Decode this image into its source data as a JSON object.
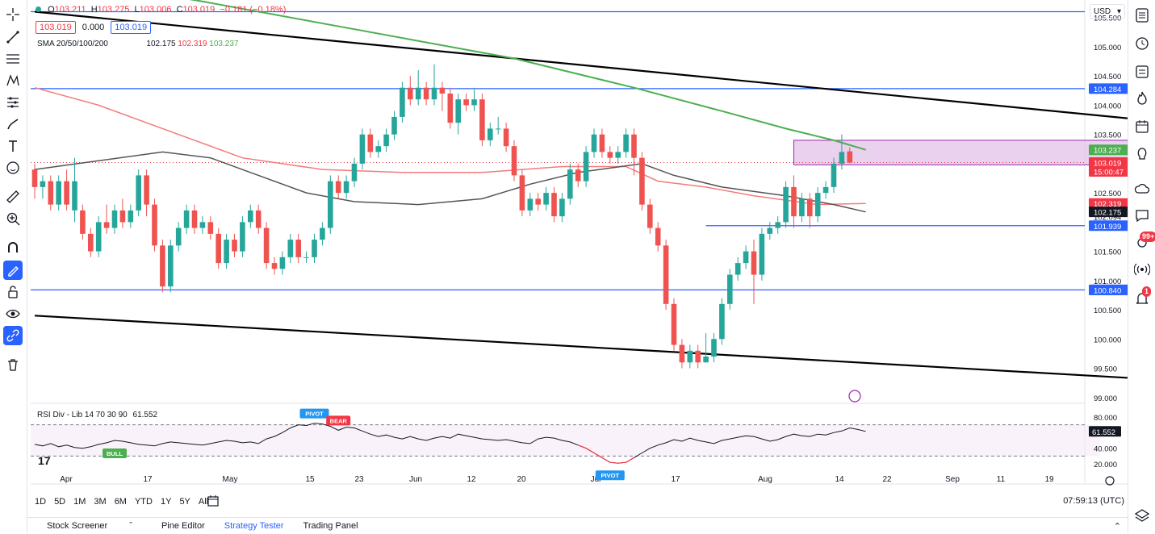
{
  "legend": {
    "ohlc": [
      {
        "label": "O",
        "value": "103.211"
      },
      {
        "label": "H",
        "value": "103.275"
      },
      {
        "label": "L",
        "value": "103.006"
      },
      {
        "label": "C",
        "value": "103.019"
      }
    ],
    "change": "−0.181 (−0.18%)",
    "bid": "103.019",
    "spread": "0.000",
    "ask": "103.019",
    "sma_title": "SMA 20/50/100/200",
    "sma_values": [
      "102.175",
      "102.319",
      "103.237"
    ],
    "rsi_title": "RSI Div - Lib 14 70 30 90",
    "rsi_value": "61.552"
  },
  "currency": "USD",
  "time_range_buttons": [
    "1D",
    "5D",
    "1M",
    "3M",
    "6M",
    "YTD",
    "1Y",
    "5Y",
    "All"
  ],
  "clock": "07:59:13 (UTC)",
  "bottom_panels": [
    "Stock Screener",
    "Pine Editor",
    "Strategy Tester",
    "Trading Panel"
  ],
  "notifications": {
    "ideas_badge": "99+",
    "alerts_badge": "1"
  },
  "colors": {
    "up": "#26a69a",
    "down": "#ef5350",
    "sma200": "#4caf50",
    "sma100": "#f47b7b",
    "sma50": "#555555",
    "hline": "#2962ff",
    "trend": "#000000",
    "zone": "#e1bee7"
  },
  "chart_data": {
    "type": "candlestick",
    "price_axis": {
      "ylim": [
        98.9,
        105.8
      ],
      "ticks": [
        "105.500",
        "105.000",
        "104.500",
        "104.000",
        "103.500",
        "102.500",
        "102.094",
        "101.500",
        "101.000",
        "100.500",
        "100.000",
        "99.500",
        "99.000"
      ]
    },
    "time_axis_labels": [
      "Apr",
      "17",
      "May",
      "15",
      "23",
      "Jun",
      "12",
      "20",
      "Jul",
      "17",
      "Aug",
      "14",
      "22",
      "Sep",
      "11",
      "19"
    ],
    "candles": [
      [
        102.9,
        102.6,
        103.0,
        102.4
      ],
      [
        102.6,
        102.7,
        102.8,
        102.4
      ],
      [
        102.7,
        102.3,
        102.8,
        102.2
      ],
      [
        102.3,
        102.7,
        102.8,
        102.2
      ],
      [
        102.7,
        102.3,
        102.9,
        102.2
      ],
      [
        102.2,
        102.7,
        103.1,
        102.0
      ],
      [
        102.2,
        101.8,
        102.3,
        101.7
      ],
      [
        101.8,
        101.5,
        101.9,
        101.4
      ],
      [
        101.5,
        102.0,
        102.1,
        101.4
      ],
      [
        102.0,
        101.9,
        102.3,
        101.8
      ],
      [
        101.9,
        102.2,
        102.3,
        101.8
      ],
      [
        102.2,
        102.0,
        102.4,
        101.9
      ],
      [
        102.0,
        102.2,
        102.3,
        101.9
      ],
      [
        102.2,
        102.8,
        102.9,
        102.1
      ],
      [
        102.8,
        102.3,
        102.9,
        102.1
      ],
      [
        102.3,
        101.6,
        102.4,
        101.5
      ],
      [
        101.6,
        100.9,
        101.7,
        100.8
      ],
      [
        100.9,
        101.6,
        101.7,
        100.8
      ],
      [
        101.6,
        101.9,
        102.0,
        101.5
      ],
      [
        101.9,
        102.2,
        102.3,
        101.8
      ],
      [
        102.2,
        101.9,
        102.3,
        101.8
      ],
      [
        101.9,
        102.0,
        102.1,
        101.8
      ],
      [
        102.0,
        101.8,
        102.1,
        101.7
      ],
      [
        101.8,
        101.3,
        101.9,
        101.2
      ],
      [
        101.3,
        101.7,
        101.8,
        101.2
      ],
      [
        101.7,
        101.5,
        101.8,
        101.4
      ],
      [
        101.5,
        102.0,
        102.1,
        101.4
      ],
      [
        102.0,
        102.2,
        102.3,
        101.9
      ],
      [
        102.2,
        101.9,
        102.3,
        101.8
      ],
      [
        101.9,
        101.3,
        102.0,
        101.2
      ],
      [
        101.3,
        101.2,
        101.4,
        101.1
      ],
      [
        101.2,
        101.4,
        101.5,
        101.1
      ],
      [
        101.4,
        101.7,
        101.8,
        101.3
      ],
      [
        101.7,
        101.4,
        101.8,
        101.3
      ],
      [
        101.4,
        101.4,
        101.5,
        101.3
      ],
      [
        101.4,
        101.7,
        101.8,
        101.3
      ],
      [
        101.7,
        101.9,
        102.0,
        101.6
      ],
      [
        101.9,
        102.7,
        102.8,
        101.8
      ],
      [
        102.7,
        102.5,
        102.8,
        102.4
      ],
      [
        102.5,
        102.7,
        102.8,
        102.4
      ],
      [
        102.7,
        103.0,
        103.1,
        102.6
      ],
      [
        103.0,
        103.5,
        103.6,
        102.9
      ],
      [
        103.5,
        103.2,
        103.6,
        103.1
      ],
      [
        103.2,
        103.3,
        103.4,
        103.1
      ],
      [
        103.3,
        103.5,
        103.6,
        103.2
      ],
      [
        103.5,
        103.8,
        103.9,
        103.4
      ],
      [
        103.8,
        104.3,
        104.4,
        103.7
      ],
      [
        104.3,
        104.1,
        104.5,
        104.0
      ],
      [
        104.1,
        104.3,
        104.6,
        104.0
      ],
      [
        104.3,
        104.1,
        104.4,
        104.0
      ],
      [
        104.1,
        104.3,
        104.7,
        104.0
      ],
      [
        104.3,
        104.2,
        104.4,
        103.9
      ],
      [
        104.2,
        103.7,
        104.3,
        103.6
      ],
      [
        103.7,
        104.1,
        104.2,
        103.5
      ],
      [
        104.1,
        104.0,
        104.2,
        103.9
      ],
      [
        104.0,
        104.1,
        104.3,
        103.9
      ],
      [
        104.1,
        103.4,
        104.2,
        103.3
      ],
      [
        103.4,
        103.6,
        103.7,
        103.3
      ],
      [
        103.6,
        103.6,
        103.8,
        103.5
      ],
      [
        103.6,
        103.3,
        103.7,
        103.2
      ],
      [
        103.3,
        102.8,
        103.4,
        102.7
      ],
      [
        102.8,
        102.2,
        102.9,
        102.1
      ],
      [
        102.2,
        102.4,
        102.5,
        102.1
      ],
      [
        102.4,
        102.3,
        102.5,
        102.2
      ],
      [
        102.3,
        102.5,
        102.6,
        102.2
      ],
      [
        102.5,
        102.1,
        102.6,
        102.0
      ],
      [
        102.1,
        102.4,
        102.5,
        102.0
      ],
      [
        102.4,
        102.9,
        103.0,
        102.3
      ],
      [
        102.9,
        102.7,
        103.0,
        102.6
      ],
      [
        102.7,
        103.2,
        103.3,
        102.6
      ],
      [
        103.2,
        103.5,
        103.6,
        103.1
      ],
      [
        103.5,
        103.2,
        103.6,
        103.1
      ],
      [
        103.2,
        103.1,
        103.3,
        103.0
      ],
      [
        103.1,
        103.2,
        103.3,
        103.0
      ],
      [
        103.2,
        103.5,
        103.6,
        103.1
      ],
      [
        103.5,
        103.1,
        103.6,
        102.8
      ],
      [
        103.1,
        102.3,
        103.2,
        102.2
      ],
      [
        102.3,
        101.9,
        102.4,
        101.8
      ],
      [
        101.9,
        101.6,
        102.0,
        101.5
      ],
      [
        101.6,
        100.6,
        101.7,
        100.5
      ],
      [
        100.6,
        99.9,
        100.7,
        99.8
      ],
      [
        99.9,
        99.6,
        100.0,
        99.5
      ],
      [
        99.6,
        99.8,
        99.9,
        99.5
      ],
      [
        99.8,
        99.6,
        99.9,
        99.5
      ],
      [
        99.6,
        99.7,
        100.1,
        99.6
      ],
      [
        99.7,
        100.0,
        100.1,
        99.6
      ],
      [
        100.0,
        100.6,
        100.7,
        99.9
      ],
      [
        100.6,
        101.1,
        101.2,
        100.5
      ],
      [
        101.1,
        101.3,
        101.4,
        101.0
      ],
      [
        101.3,
        101.5,
        101.6,
        101.2
      ],
      [
        101.5,
        101.1,
        101.7,
        100.6
      ],
      [
        101.1,
        101.8,
        101.9,
        101.0
      ],
      [
        101.8,
        101.9,
        102.0,
        101.7
      ],
      [
        101.9,
        102.0,
        102.1,
        101.8
      ],
      [
        102.0,
        102.6,
        102.7,
        101.9
      ],
      [
        102.6,
        102.1,
        102.8,
        101.9
      ],
      [
        102.1,
        102.4,
        102.5,
        102.0
      ],
      [
        102.4,
        102.1,
        102.5,
        101.9
      ],
      [
        102.1,
        102.5,
        102.6,
        102.0
      ],
      [
        102.5,
        102.6,
        102.7,
        102.4
      ],
      [
        102.6,
        103.0,
        103.1,
        102.5
      ],
      [
        103.0,
        103.2,
        103.5,
        102.9
      ],
      [
        103.211,
        103.019,
        103.275,
        103.006
      ]
    ],
    "sma": [
      {
        "name": "SMA 200",
        "color": "#4caf50",
        "points": [
          [
            0,
            106.2
          ],
          [
            20,
            105.8
          ],
          [
            40,
            105.3
          ],
          [
            60,
            104.8
          ],
          [
            75,
            104.3
          ],
          [
            86,
            103.9
          ],
          [
            94,
            103.6
          ],
          [
            100,
            103.4
          ],
          [
            104,
            103.237
          ]
        ]
      },
      {
        "name": "SMA 100",
        "color": "#f47b7b",
        "points": [
          [
            0,
            104.3
          ],
          [
            8,
            104.0
          ],
          [
            16,
            103.6
          ],
          [
            26,
            103.1
          ],
          [
            36,
            102.9
          ],
          [
            46,
            102.85
          ],
          [
            56,
            102.85
          ],
          [
            66,
            102.95
          ],
          [
            74,
            102.95
          ],
          [
            78,
            102.7
          ],
          [
            84,
            102.6
          ],
          [
            90,
            102.45
          ],
          [
            98,
            102.3
          ],
          [
            104,
            102.319
          ]
        ]
      },
      {
        "name": "SMA 50",
        "color": "#555555",
        "points": [
          [
            0,
            102.9
          ],
          [
            8,
            103.05
          ],
          [
            16,
            103.2
          ],
          [
            22,
            103.1
          ],
          [
            28,
            102.8
          ],
          [
            34,
            102.5
          ],
          [
            40,
            102.35
          ],
          [
            48,
            102.3
          ],
          [
            56,
            102.4
          ],
          [
            62,
            102.65
          ],
          [
            68,
            102.85
          ],
          [
            76,
            103.0
          ],
          [
            80,
            102.8
          ],
          [
            86,
            102.6
          ],
          [
            94,
            102.45
          ],
          [
            100,
            102.3
          ],
          [
            104,
            102.175
          ]
        ]
      }
    ],
    "horizontal_lines": [
      105.6,
      104.284,
      101.939,
      100.841
    ],
    "support_line_start": 84,
    "trendlines": [
      {
        "from": [
          0,
          105.6
        ],
        "to": [
          180,
          103.2
        ]
      },
      {
        "from": [
          0,
          100.4
        ],
        "to": [
          180,
          99.0
        ]
      }
    ],
    "zone": {
      "from": 95,
      "to": 180,
      "high": 103.4,
      "low": 102.98
    },
    "price_labels": [
      {
        "text": "104.284",
        "value": 104.284,
        "bg": "#2962ff",
        "fg": "#ffffff"
      },
      {
        "text": "103.237",
        "value": 103.237,
        "bg": "#4caf50",
        "fg": "#ffffff"
      },
      {
        "text": "103.019",
        "value": 103.019,
        "bg": "#f23645",
        "fg": "#ffffff",
        "sub": "15:00:47"
      },
      {
        "text": "102.319",
        "value": 102.319,
        "bg": "#f23645",
        "fg": "#ffffff"
      },
      {
        "text": "102.175",
        "value": 102.175,
        "bg": "#131722",
        "fg": "#ffffff"
      },
      {
        "text": "101.939",
        "value": 101.939,
        "bg": "#2962ff",
        "fg": "#ffffff"
      },
      {
        "text": "100.841",
        "value": 100.841,
        "bg": "#2962ff",
        "fg": "#ffffff"
      },
      {
        "text": "100.840",
        "value": 100.84,
        "bg": "#2962ff",
        "fg": "#ffffff"
      }
    ],
    "rsi": {
      "ylim": [
        15,
        85
      ],
      "ticks": [
        "80.000",
        "60.000",
        "40.000",
        "20.000"
      ],
      "upper": 70,
      "lower": 30,
      "values": [
        45,
        43,
        46,
        42,
        44,
        41,
        40,
        42,
        45,
        47,
        50,
        49,
        47,
        45,
        44,
        43,
        46,
        48,
        47,
        46,
        45,
        44,
        46,
        48,
        50,
        49,
        47,
        48,
        46,
        52,
        55,
        60,
        66,
        70,
        69,
        72,
        71,
        68,
        63,
        67,
        66,
        62,
        58,
        55,
        57,
        54,
        52,
        55,
        52,
        50,
        53,
        55,
        53,
        58,
        56,
        54,
        52,
        51,
        50,
        51,
        49,
        47,
        46,
        52,
        54,
        53,
        50,
        48,
        44,
        40,
        34,
        28,
        22,
        21,
        22,
        28,
        34,
        40,
        44,
        47,
        51,
        49,
        53,
        50,
        48,
        46,
        50,
        52,
        54,
        56,
        55,
        52,
        49,
        51,
        55,
        58,
        56,
        55,
        58,
        57,
        60,
        62,
        66,
        64,
        61.552
      ],
      "markers": [
        {
          "text": "BULL",
          "index": 10,
          "color": "#4caf50",
          "pos": "below"
        },
        {
          "text": "PIVOT",
          "index": 35,
          "color": "#2196f3",
          "pos": "above"
        },
        {
          "text": "BEAR",
          "index": 38,
          "color": "#f23645",
          "pos": "above"
        },
        {
          "text": "PIVOT",
          "index": 72,
          "color": "#2196f3",
          "pos": "below"
        }
      ]
    }
  }
}
